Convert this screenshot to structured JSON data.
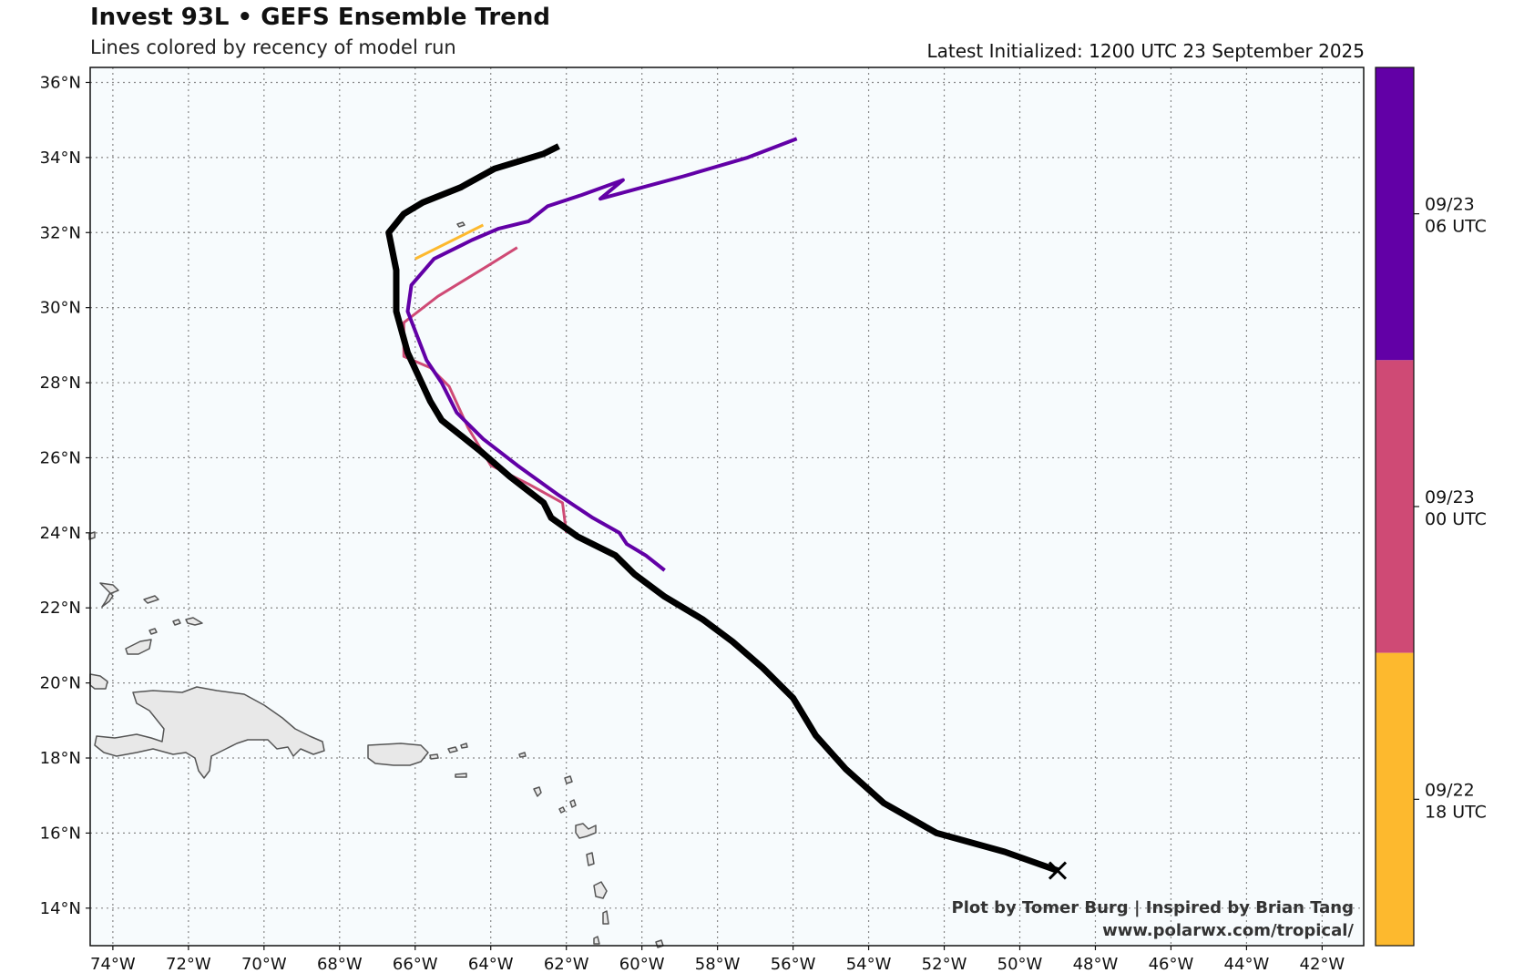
{
  "header": {
    "title": "Invest 93L • GEFS Ensemble Trend",
    "subtitle": "Lines colored by recency of model run",
    "initialized": "Latest Initialized: 1200 UTC 23 September 2025"
  },
  "credits": {
    "line1": "Plot by Tomer Burg | Inspired by Brian Tang",
    "line2": "www.polarwx.com/tropical/"
  },
  "map": {
    "lon_range": [
      -74.6,
      -40.9
    ],
    "lat_range": [
      13.0,
      36.4
    ],
    "lon_ticks": [
      -74,
      -72,
      -70,
      -68,
      -66,
      -64,
      -62,
      -60,
      -58,
      -56,
      -54,
      -52,
      -50,
      -48,
      -46,
      -44,
      -42
    ],
    "lon_labels": [
      "74°W",
      "72°W",
      "70°W",
      "68°W",
      "66°W",
      "64°W",
      "62°W",
      "60°W",
      "58°W",
      "56°W",
      "54°W",
      "52°W",
      "50°W",
      "48°W",
      "46°W",
      "44°W",
      "42°W"
    ],
    "lat_ticks": [
      14,
      16,
      18,
      20,
      22,
      24,
      26,
      28,
      30,
      32,
      34,
      36
    ],
    "lat_labels": [
      "14°N",
      "16°N",
      "18°N",
      "20°N",
      "22°N",
      "24°N",
      "26°N",
      "28°N",
      "30°N",
      "32°N",
      "34°N",
      "36°N"
    ],
    "grid": true,
    "background": "#f7fbfd",
    "land_color": "#e8e8e8",
    "coast_color": "#555555"
  },
  "colorbar": {
    "segments": [
      {
        "label_line1": "09/23",
        "label_line2": "06 UTC",
        "color": "#6200a6"
      },
      {
        "label_line1": "09/23",
        "label_line2": "00 UTC",
        "color": "#cf4a75"
      },
      {
        "label_line1": "09/22",
        "label_line2": "18 UTC",
        "color": "#fdb92e"
      }
    ]
  },
  "chart_data": {
    "type": "line",
    "x_unit": "longitude (degrees, negative = W)",
    "y_unit": "latitude (degrees N)",
    "series": [
      {
        "run": "09/22 18 UTC",
        "color": "#fdb92e",
        "width": 3,
        "points": [
          [
            -64.2,
            32.2
          ],
          [
            -66.0,
            31.3
          ]
        ]
      },
      {
        "run": "09/23 00 UTC",
        "color": "#cf4a75",
        "width": 3,
        "points": [
          [
            -62.0,
            24.0
          ],
          [
            -62.1,
            24.8
          ],
          [
            -63.0,
            25.3
          ],
          [
            -64.0,
            25.8
          ],
          [
            -64.6,
            26.8
          ],
          [
            -65.1,
            27.9
          ],
          [
            -65.6,
            28.4
          ],
          [
            -66.3,
            28.7
          ],
          [
            -66.3,
            29.6
          ],
          [
            -65.4,
            30.3
          ],
          [
            -64.1,
            31.1
          ],
          [
            -63.3,
            31.6
          ]
        ]
      },
      {
        "run": "09/23 06 UTC",
        "color": "#6200a6",
        "width": 4,
        "points": [
          [
            -59.4,
            23.0
          ],
          [
            -59.9,
            23.4
          ],
          [
            -60.4,
            23.7
          ],
          [
            -60.6,
            24.0
          ],
          [
            -61.3,
            24.4
          ],
          [
            -62.2,
            25.0
          ],
          [
            -63.3,
            25.8
          ],
          [
            -64.2,
            26.5
          ],
          [
            -64.9,
            27.2
          ],
          [
            -65.3,
            28.0
          ],
          [
            -65.7,
            28.6
          ],
          [
            -66.2,
            29.9
          ],
          [
            -66.1,
            30.6
          ],
          [
            -65.5,
            31.3
          ],
          [
            -64.5,
            31.8
          ],
          [
            -63.8,
            32.1
          ],
          [
            -63.0,
            32.3
          ],
          [
            -62.5,
            32.7
          ],
          [
            -61.6,
            33.0
          ],
          [
            -60.5,
            33.4
          ],
          [
            -61.1,
            32.9
          ],
          [
            -60.0,
            33.2
          ],
          [
            -58.9,
            33.5
          ],
          [
            -57.2,
            34.0
          ],
          [
            -55.9,
            34.5
          ]
        ]
      },
      {
        "run": "latest 12 UTC",
        "color": "#000000",
        "width": 7,
        "points": [
          [
            -49.0,
            15.0
          ],
          [
            -50.4,
            15.5
          ],
          [
            -52.2,
            16.0
          ],
          [
            -53.6,
            16.8
          ],
          [
            -54.6,
            17.7
          ],
          [
            -55.4,
            18.6
          ],
          [
            -56.0,
            19.6
          ],
          [
            -56.8,
            20.4
          ],
          [
            -57.6,
            21.1
          ],
          [
            -58.4,
            21.7
          ],
          [
            -59.4,
            22.3
          ],
          [
            -60.2,
            22.9
          ],
          [
            -60.7,
            23.4
          ],
          [
            -61.7,
            23.9
          ],
          [
            -62.4,
            24.4
          ],
          [
            -62.6,
            24.8
          ],
          [
            -63.5,
            25.5
          ],
          [
            -64.3,
            26.2
          ],
          [
            -65.3,
            27.0
          ],
          [
            -65.6,
            27.5
          ],
          [
            -66.2,
            28.8
          ],
          [
            -66.5,
            29.9
          ],
          [
            -66.5,
            31.0
          ],
          [
            -66.7,
            32.0
          ],
          [
            -66.3,
            32.5
          ],
          [
            -65.8,
            32.8
          ],
          [
            -64.8,
            33.2
          ],
          [
            -63.9,
            33.7
          ],
          [
            -62.6,
            34.1
          ],
          [
            -62.2,
            34.3
          ]
        ],
        "end_marker": "x"
      }
    ]
  }
}
